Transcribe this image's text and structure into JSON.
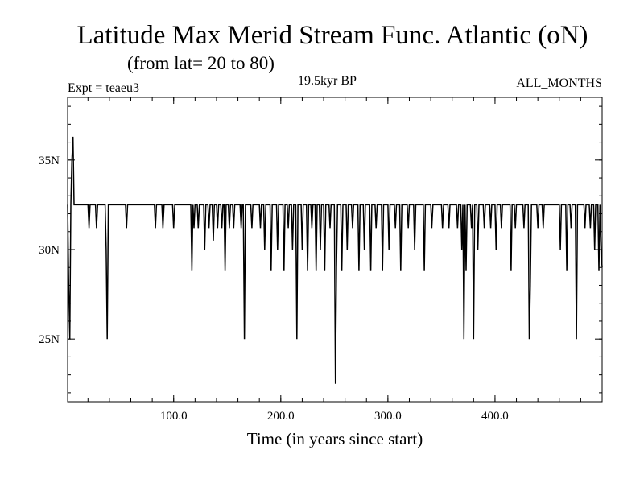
{
  "chart_data": {
    "type": "line",
    "title": "Latitude Max Merid Stream Func. Atlantic (oN)",
    "subtitle": "(from lat= 20 to 80)",
    "annotations": {
      "experiment": "Expt = teaeu3",
      "period": "19.5kyr BP",
      "months": "ALL_MONTHS"
    },
    "xlabel": "Time (in years since start)",
    "ylabel": "",
    "xlim": [
      1,
      500
    ],
    "ylim": [
      21.5,
      38.5
    ],
    "x_ticks": [
      {
        "value": 100,
        "label": "100.0"
      },
      {
        "value": 200,
        "label": "200.0"
      },
      {
        "value": 300,
        "label": "300.0"
      },
      {
        "value": 400,
        "label": "400.0"
      }
    ],
    "y_ticks": [
      {
        "value": 25,
        "label": "25N"
      },
      {
        "value": 30,
        "label": "30N"
      },
      {
        "value": 35,
        "label": "35N"
      }
    ],
    "grid": false,
    "baseline": 32.5,
    "series": [
      {
        "color": "#000000",
        "points": [
          [
            1,
            32.5
          ],
          [
            2,
            28
          ],
          [
            3,
            25
          ],
          [
            4,
            32.5
          ],
          [
            5,
            35
          ],
          [
            6,
            36.3
          ],
          [
            7,
            32.5
          ],
          [
            20,
            32.5
          ],
          [
            21,
            31.2
          ],
          [
            22,
            32.5
          ],
          [
            27,
            32.5
          ],
          [
            28,
            31.2
          ],
          [
            29,
            32.5
          ],
          [
            36,
            32.5
          ],
          [
            37,
            30
          ],
          [
            38,
            25
          ],
          [
            39,
            32.5
          ],
          [
            55,
            32.5
          ],
          [
            56,
            31.2
          ],
          [
            57,
            32.5
          ],
          [
            82,
            32.5
          ],
          [
            83,
            31.2
          ],
          [
            84,
            32.5
          ],
          [
            89,
            32.5
          ],
          [
            90,
            31.2
          ],
          [
            91,
            32.5
          ],
          [
            99,
            32.5
          ],
          [
            100,
            31.2
          ],
          [
            101,
            32.5
          ],
          [
            116,
            32.5
          ],
          [
            117,
            28.8
          ],
          [
            118,
            32.5
          ],
          [
            119,
            31.2
          ],
          [
            120,
            32.5
          ],
          [
            122,
            32.5
          ],
          [
            123,
            31.2
          ],
          [
            124,
            32.5
          ],
          [
            128,
            32.5
          ],
          [
            129,
            30
          ],
          [
            130,
            32.5
          ],
          [
            132,
            32.5
          ],
          [
            133,
            31.2
          ],
          [
            134,
            32.5
          ],
          [
            136,
            32.5
          ],
          [
            137,
            30.5
          ],
          [
            138,
            32.5
          ],
          [
            140,
            32.5
          ],
          [
            141,
            31.2
          ],
          [
            142,
            32.5
          ],
          [
            144,
            32.5
          ],
          [
            145,
            31.2
          ],
          [
            146,
            32.5
          ],
          [
            147,
            32.5
          ],
          [
            148,
            28.8
          ],
          [
            149,
            32.5
          ],
          [
            151,
            32.5
          ],
          [
            152,
            31.2
          ],
          [
            153,
            32.5
          ],
          [
            155,
            32.5
          ],
          [
            156,
            31.2
          ],
          [
            157,
            32.5
          ],
          [
            162,
            32.5
          ],
          [
            163,
            31.2
          ],
          [
            164,
            32.5
          ],
          [
            165,
            32.5
          ],
          [
            166,
            25
          ],
          [
            167,
            32.5
          ],
          [
            172,
            32.5
          ],
          [
            173,
            31.2
          ],
          [
            174,
            32.5
          ],
          [
            180,
            32.5
          ],
          [
            181,
            31.2
          ],
          [
            182,
            32.5
          ],
          [
            184,
            32.5
          ],
          [
            185,
            30
          ],
          [
            186,
            32.5
          ],
          [
            190,
            32.5
          ],
          [
            191,
            28.8
          ],
          [
            192,
            32.5
          ],
          [
            196,
            32.5
          ],
          [
            197,
            30
          ],
          [
            198,
            32.5
          ],
          [
            202,
            32.5
          ],
          [
            203,
            28.8
          ],
          [
            204,
            32.5
          ],
          [
            206,
            32.5
          ],
          [
            207,
            31.2
          ],
          [
            208,
            32.5
          ],
          [
            210,
            32.5
          ],
          [
            211,
            30
          ],
          [
            212,
            32.5
          ],
          [
            214,
            32.5
          ],
          [
            215,
            25
          ],
          [
            216,
            32.5
          ],
          [
            219,
            32.5
          ],
          [
            220,
            30
          ],
          [
            221,
            32.5
          ],
          [
            224,
            32.5
          ],
          [
            225,
            28.8
          ],
          [
            226,
            32.5
          ],
          [
            228,
            32.5
          ],
          [
            229,
            31.2
          ],
          [
            230,
            32.5
          ],
          [
            232,
            32.5
          ],
          [
            233,
            28.8
          ],
          [
            234,
            32.5
          ],
          [
            236,
            32.5
          ],
          [
            237,
            30
          ],
          [
            238,
            32.5
          ],
          [
            240,
            32.5
          ],
          [
            241,
            28.8
          ],
          [
            242,
            32.5
          ],
          [
            245,
            32.5
          ],
          [
            246,
            31.2
          ],
          [
            247,
            32.5
          ],
          [
            250,
            32.5
          ],
          [
            251,
            22.5
          ],
          [
            252,
            29
          ],
          [
            253,
            32.5
          ],
          [
            256,
            32.5
          ],
          [
            257,
            28.8
          ],
          [
            258,
            32.5
          ],
          [
            261,
            32.5
          ],
          [
            262,
            30
          ],
          [
            263,
            32.5
          ],
          [
            266,
            32.5
          ],
          [
            267,
            31.2
          ],
          [
            268,
            32.5
          ],
          [
            272,
            32.5
          ],
          [
            273,
            28.8
          ],
          [
            274,
            32.5
          ],
          [
            277,
            32.5
          ],
          [
            278,
            30
          ],
          [
            279,
            32.5
          ],
          [
            283,
            32.5
          ],
          [
            284,
            28.8
          ],
          [
            285,
            32.5
          ],
          [
            288,
            32.5
          ],
          [
            289,
            31.2
          ],
          [
            290,
            32.5
          ],
          [
            294,
            32.5
          ],
          [
            295,
            28.8
          ],
          [
            296,
            32.5
          ],
          [
            300,
            32.5
          ],
          [
            301,
            30
          ],
          [
            302,
            32.5
          ],
          [
            306,
            32.5
          ],
          [
            307,
            31.2
          ],
          [
            308,
            32.5
          ],
          [
            311,
            32.5
          ],
          [
            312,
            28.8
          ],
          [
            313,
            32.5
          ],
          [
            318,
            32.5
          ],
          [
            319,
            31.2
          ],
          [
            320,
            32.5
          ],
          [
            324,
            32.5
          ],
          [
            325,
            30
          ],
          [
            326,
            32.5
          ],
          [
            333,
            32.5
          ],
          [
            334,
            28.8
          ],
          [
            335,
            32.5
          ],
          [
            340,
            32.5
          ],
          [
            341,
            31.2
          ],
          [
            342,
            32.5
          ],
          [
            350,
            32.5
          ],
          [
            351,
            31.2
          ],
          [
            352,
            32.5
          ],
          [
            356,
            32.5
          ],
          [
            357,
            31.2
          ],
          [
            358,
            32.5
          ],
          [
            364,
            32.5
          ],
          [
            365,
            31.2
          ],
          [
            366,
            32.5
          ],
          [
            368,
            32.5
          ],
          [
            369,
            30
          ],
          [
            370,
            32.5
          ],
          [
            371,
            25
          ],
          [
            372,
            32.5
          ],
          [
            373,
            28.8
          ],
          [
            374,
            32.5
          ],
          [
            377,
            32.5
          ],
          [
            378,
            31.2
          ],
          [
            379,
            32.5
          ],
          [
            380,
            25
          ],
          [
            381,
            32.5
          ],
          [
            383,
            32.5
          ],
          [
            384,
            30
          ],
          [
            385,
            32.5
          ],
          [
            389,
            32.5
          ],
          [
            390,
            31.2
          ],
          [
            391,
            32.5
          ],
          [
            395,
            32.5
          ],
          [
            396,
            31.2
          ],
          [
            397,
            32.5
          ],
          [
            400,
            32.5
          ],
          [
            401,
            30
          ],
          [
            402,
            32.5
          ],
          [
            405,
            32.5
          ],
          [
            406,
            31.2
          ],
          [
            407,
            32.5
          ],
          [
            414,
            32.5
          ],
          [
            415,
            28.8
          ],
          [
            416,
            32.5
          ],
          [
            418,
            32.5
          ],
          [
            419,
            31.2
          ],
          [
            420,
            32.5
          ],
          [
            426,
            32.5
          ],
          [
            427,
            31.2
          ],
          [
            428,
            32.5
          ],
          [
            431,
            32.5
          ],
          [
            432,
            25
          ],
          [
            433,
            28
          ],
          [
            434,
            32.5
          ],
          [
            439,
            32.5
          ],
          [
            440,
            31.2
          ],
          [
            441,
            32.5
          ],
          [
            444,
            32.5
          ],
          [
            445,
            31.2
          ],
          [
            446,
            32.5
          ],
          [
            460,
            32.5
          ],
          [
            461,
            30
          ],
          [
            462,
            32.5
          ],
          [
            466,
            32.5
          ],
          [
            467,
            28.8
          ],
          [
            468,
            32.5
          ],
          [
            470,
            32.5
          ],
          [
            471,
            31.2
          ],
          [
            472,
            32.5
          ],
          [
            475,
            32.5
          ],
          [
            476,
            25
          ],
          [
            477,
            32.5
          ],
          [
            483,
            32.5
          ],
          [
            484,
            31.2
          ],
          [
            485,
            32.5
          ],
          [
            488,
            32.5
          ],
          [
            489,
            31.2
          ],
          [
            490,
            32.5
          ],
          [
            492,
            32.5
          ],
          [
            493,
            30
          ],
          [
            494,
            32.5
          ],
          [
            496,
            32.5
          ],
          [
            497,
            28.8
          ],
          [
            498,
            32.5
          ],
          [
            499,
            30
          ],
          [
            500,
            29
          ]
        ]
      }
    ]
  }
}
